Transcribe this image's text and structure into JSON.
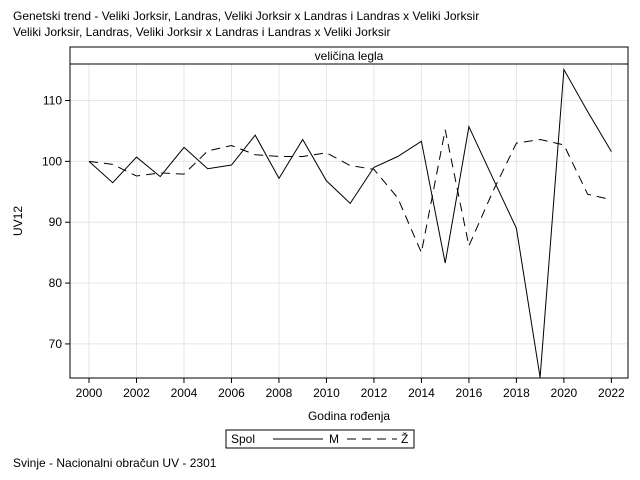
{
  "header": {
    "title_line1": "Genetski trend - Veliki Jorksir, Landras, Veliki Jorksir x Landras i Landras x Veliki Jorksir",
    "title_line2": "Veliki Jorksir, Landras, Veliki Jorksir x Landras i Landras x Veliki Jorksir"
  },
  "footer": {
    "note": "Svinje - Nacionalni obračun UV - 2301"
  },
  "colors": {
    "line": "#000000",
    "grid": "#e6e6e6",
    "panel_header_bg": "#ffffff"
  },
  "chart_data": {
    "type": "line",
    "panel_label": "veličina legla",
    "xlabel": "Godina rođenja",
    "ylabel": "UV12",
    "x": [
      2000,
      2001,
      2002,
      2003,
      2004,
      2005,
      2006,
      2007,
      2008,
      2009,
      2010,
      2011,
      2012,
      2013,
      2014,
      2015,
      2016,
      2017,
      2018,
      2019,
      2020,
      2021,
      2022
    ],
    "xticks": [
      2000,
      2002,
      2004,
      2006,
      2008,
      2010,
      2012,
      2014,
      2016,
      2018,
      2020,
      2022
    ],
    "yticks": [
      70,
      80,
      90,
      100,
      110
    ],
    "xlim": [
      1999.2,
      2022.7
    ],
    "ylim": [
      64.4,
      116.0
    ],
    "grid": true,
    "legend": {
      "title": "Spol",
      "placement": "bottom-center"
    },
    "series": [
      {
        "name": "M",
        "style": "solid",
        "values": [
          100.0,
          96.5,
          100.7,
          97.5,
          102.3,
          98.8,
          99.4,
          104.3,
          97.2,
          103.6,
          96.8,
          93.1,
          99.0,
          100.8,
          103.3,
          83.3,
          105.7,
          97.3,
          89.0,
          64.5,
          115.1,
          108.2,
          101.6
        ]
      },
      {
        "name": "Ž",
        "style": "dashed",
        "values": [
          100.0,
          99.5,
          97.6,
          98.1,
          97.9,
          101.7,
          102.6,
          101.1,
          100.8,
          100.8,
          101.4,
          99.3,
          98.7,
          94.0,
          85.0,
          105.2,
          86.1,
          95.0,
          103.0,
          103.6,
          102.7,
          94.6,
          93.7
        ]
      }
    ]
  }
}
